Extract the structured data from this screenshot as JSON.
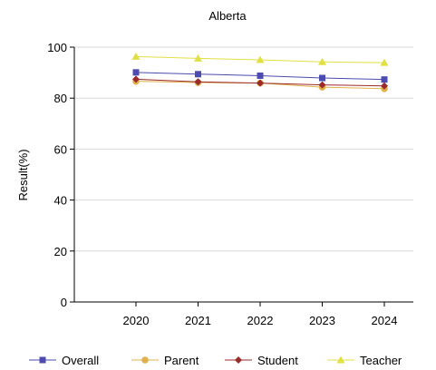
{
  "chart_data": {
    "type": "line",
    "title": "Alberta",
    "xlabel": "",
    "ylabel": "Result(%)",
    "categories": [
      "2020",
      "2021",
      "2022",
      "2023",
      "2024"
    ],
    "ylim": [
      0,
      100
    ],
    "yticks": [
      0,
      20,
      40,
      60,
      80,
      100
    ],
    "grid": "horizontal",
    "legend": "bottom",
    "series": [
      {
        "name": "Overall",
        "color": "#4b4bb0",
        "marker": "square",
        "values": [
          90.1,
          89.4,
          88.8,
          87.9,
          87.3
        ]
      },
      {
        "name": "Parent",
        "color": "#e2b04a",
        "marker": "circle",
        "values": [
          86.6,
          86.1,
          85.9,
          84.3,
          83.7
        ]
      },
      {
        "name": "Student",
        "color": "#9b2b2b",
        "marker": "diamond",
        "values": [
          87.4,
          86.4,
          85.9,
          85.2,
          84.8
        ]
      },
      {
        "name": "Teacher",
        "color": "#e0e044",
        "marker": "triangle",
        "values": [
          96.3,
          95.6,
          95.0,
          94.2,
          93.9
        ]
      }
    ]
  }
}
